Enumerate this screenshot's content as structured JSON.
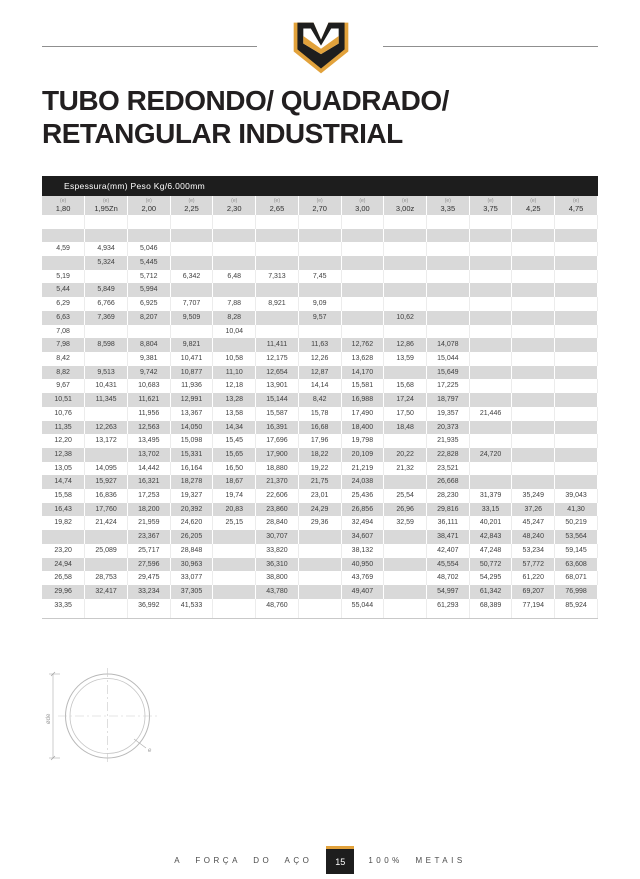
{
  "title": {
    "line1": "TUBO REDONDO/ QUADRADO/",
    "line2": "RETANGULAR INDUSTRIAL"
  },
  "table": {
    "caption": "Espessura(mm) Peso Kg/6.000mm",
    "column_mark": "(e)",
    "columns": [
      "1,80",
      "1,95Zn",
      "2,00",
      "2,25",
      "2,30",
      "2,65",
      "2,70",
      "3,00",
      "3,00z",
      "3,35",
      "3,75",
      "4,25",
      "4,75"
    ],
    "rows": [
      [
        "",
        "",
        "",
        "",
        "",
        "",
        "",
        "",
        "",
        "",
        "",
        "",
        ""
      ],
      [
        "",
        "",
        "",
        "",
        "",
        "",
        "",
        "",
        "",
        "",
        "",
        "",
        ""
      ],
      [
        "4,59",
        "4,934",
        "5,046",
        "",
        "",
        "",
        "",
        "",
        "",
        "",
        "",
        "",
        ""
      ],
      [
        "",
        "5,324",
        "5,445",
        "",
        "",
        "",
        "",
        "",
        "",
        "",
        "",
        "",
        ""
      ],
      [
        "5,19",
        "",
        "5,712",
        "6,342",
        "6,48",
        "7,313",
        "7,45",
        "",
        "",
        "",
        "",
        "",
        ""
      ],
      [
        "5,44",
        "5,849",
        "5,994",
        "",
        "",
        "",
        "",
        "",
        "",
        "",
        "",
        "",
        ""
      ],
      [
        "6,29",
        "6,766",
        "6,925",
        "7,707",
        "7,88",
        "8,921",
        "9,09",
        "",
        "",
        "",
        "",
        "",
        ""
      ],
      [
        "6,63",
        "7,369",
        "8,207",
        "9,509",
        "8,28",
        "",
        "9,57",
        "",
        "10,62",
        "",
        "",
        "",
        ""
      ],
      [
        "7,08",
        "",
        "",
        "",
        "10,04",
        "",
        "",
        "",
        "",
        "",
        "",
        "",
        ""
      ],
      [
        "7,98",
        "8,598",
        "8,804",
        "9,821",
        "",
        "11,411",
        "11,63",
        "12,762",
        "12,86",
        "14,078",
        "",
        "",
        ""
      ],
      [
        "8,42",
        "",
        "9,381",
        "10,471",
        "10,58",
        "12,175",
        "12,26",
        "13,628",
        "13,59",
        "15,044",
        "",
        "",
        ""
      ],
      [
        "8,82",
        "9,513",
        "9,742",
        "10,877",
        "11,10",
        "12,654",
        "12,87",
        "14,170",
        "",
        "15,649",
        "",
        "",
        ""
      ],
      [
        "9,67",
        "10,431",
        "10,683",
        "11,936",
        "12,18",
        "13,901",
        "14,14",
        "15,581",
        "15,68",
        "17,225",
        "",
        "",
        ""
      ],
      [
        "10,51",
        "11,345",
        "11,621",
        "12,991",
        "13,28",
        "15,144",
        "8,42",
        "16,988",
        "17,24",
        "18,797",
        "",
        "",
        ""
      ],
      [
        "10,76",
        "",
        "11,956",
        "13,367",
        "13,58",
        "15,587",
        "15,78",
        "17,490",
        "17,50",
        "19,357",
        "21,446",
        "",
        ""
      ],
      [
        "11,35",
        "12,263",
        "12,563",
        "14,050",
        "14,34",
        "16,391",
        "16,68",
        "18,400",
        "18,48",
        "20,373",
        "",
        "",
        ""
      ],
      [
        "12,20",
        "13,172",
        "13,495",
        "15,098",
        "15,45",
        "17,696",
        "17,96",
        "19,798",
        "",
        "21,935",
        "",
        "",
        ""
      ],
      [
        "12,38",
        "",
        "13,702",
        "15,331",
        "15,65",
        "17,900",
        "18,22",
        "20,109",
        "20,22",
        "22,828",
        "24,720",
        "",
        ""
      ],
      [
        "13,05",
        "14,095",
        "14,442",
        "16,164",
        "16,50",
        "18,880",
        "19,22",
        "21,219",
        "21,32",
        "23,521",
        "",
        "",
        ""
      ],
      [
        "14,74",
        "15,927",
        "16,321",
        "18,278",
        "18,67",
        "21,370",
        "21,75",
        "24,038",
        "",
        "26,668",
        "",
        "",
        ""
      ],
      [
        "15,58",
        "16,836",
        "17,253",
        "19,327",
        "19,74",
        "22,606",
        "23,01",
        "25,436",
        "25,54",
        "28,230",
        "31,379",
        "35,249",
        "39,043"
      ],
      [
        "16,43",
        "17,760",
        "18,200",
        "20,392",
        "20,83",
        "23,860",
        "24,29",
        "26,856",
        "26,96",
        "29,816",
        "33,15",
        "37,26",
        "41,30"
      ],
      [
        "19,82",
        "21,424",
        "21,959",
        "24,620",
        "25,15",
        "28,840",
        "29,36",
        "32,494",
        "32,59",
        "36,111",
        "40,201",
        "45,247",
        "50,219"
      ],
      [
        "",
        "",
        "23,367",
        "26,205",
        "",
        "30,707",
        "",
        "34,607",
        "",
        "38,471",
        "42,843",
        "48,240",
        "53,564"
      ],
      [
        "23,20",
        "25,089",
        "25,717",
        "28,848",
        "",
        "33,820",
        "",
        "38,132",
        "",
        "42,407",
        "47,248",
        "53,234",
        "59,145"
      ],
      [
        "24,94",
        "",
        "27,596",
        "30,963",
        "",
        "36,310",
        "",
        "40,950",
        "",
        "45,554",
        "50,772",
        "57,772",
        "63,608"
      ],
      [
        "26,58",
        "28,753",
        "29,475",
        "33,077",
        "",
        "38,800",
        "",
        "43,769",
        "",
        "48,702",
        "54,295",
        "61,220",
        "68,071"
      ],
      [
        "29,96",
        "32,417",
        "33,234",
        "37,305",
        "",
        "43,780",
        "",
        "49,407",
        "",
        "54,997",
        "61,342",
        "69,207",
        "76,998"
      ],
      [
        "33,35",
        "",
        "36,992",
        "41,533",
        "",
        "48,760",
        "",
        "55,044",
        "",
        "61,293",
        "68,389",
        "77,194",
        "85,924"
      ]
    ]
  },
  "diagram": {
    "diameter_label": "øde",
    "thickness_label": "e"
  },
  "footer": {
    "left": "A FORÇA DO AÇO",
    "page": "15",
    "right": "100% METAIS"
  },
  "colors": {
    "accent_gold": "#E2A23B",
    "ink": "#1D1D1D",
    "stripe": "#D9D9D9"
  }
}
